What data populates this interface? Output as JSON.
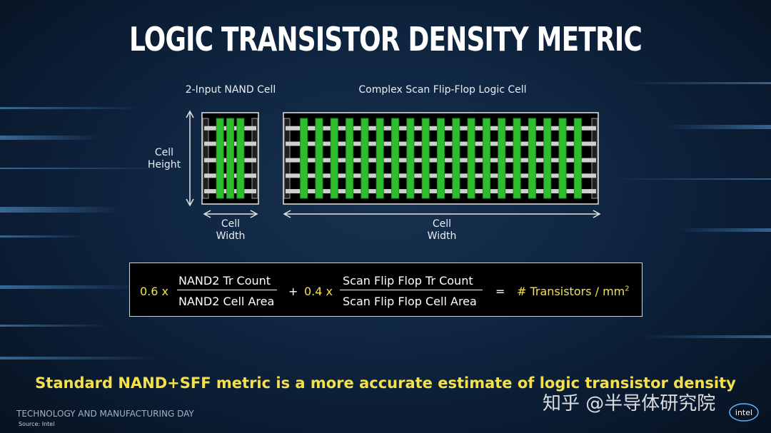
{
  "slide": {
    "title": "LOGIC TRANSISTOR DENSITY METRIC",
    "summary": "Standard NAND+SFF metric is a more accurate estimate of logic transistor density",
    "event_name": "TECHNOLOGY AND MANUFACTURING DAY",
    "source": "Source: Intel",
    "watermark": "知乎 @半导体研究院",
    "logo_text": "intel"
  },
  "diagram": {
    "nand_cell": {
      "title": "2-Input NAND Cell",
      "gate_count": 3,
      "height_label_line1": "Cell",
      "height_label_line2": "Height",
      "width_label_line1": "Cell",
      "width_label_line2": "Width"
    },
    "sff_cell": {
      "title": "Complex Scan Flip-Flop Logic Cell",
      "gate_count": 19,
      "width_label_line1": "Cell",
      "width_label_line2": "Width"
    },
    "rail_count": 5,
    "colors": {
      "gate": "#2fbd2f",
      "gate_edge": "#1d8f1d",
      "rail": "#cfcfcf",
      "cell_fill": "#000000",
      "cell_border": "#e6e6e6"
    }
  },
  "formula": {
    "coef1": "0.6 x",
    "num1": "NAND2 Tr Count",
    "den1": "NAND2 Cell Area",
    "plus": "+",
    "coef2": "0.4 x",
    "num2": "Scan Flip Flop Tr Count",
    "den2": "Scan Flip Flop Cell Area",
    "equals": "=",
    "result": "# Transistors / mm",
    "result_sup": "2"
  }
}
